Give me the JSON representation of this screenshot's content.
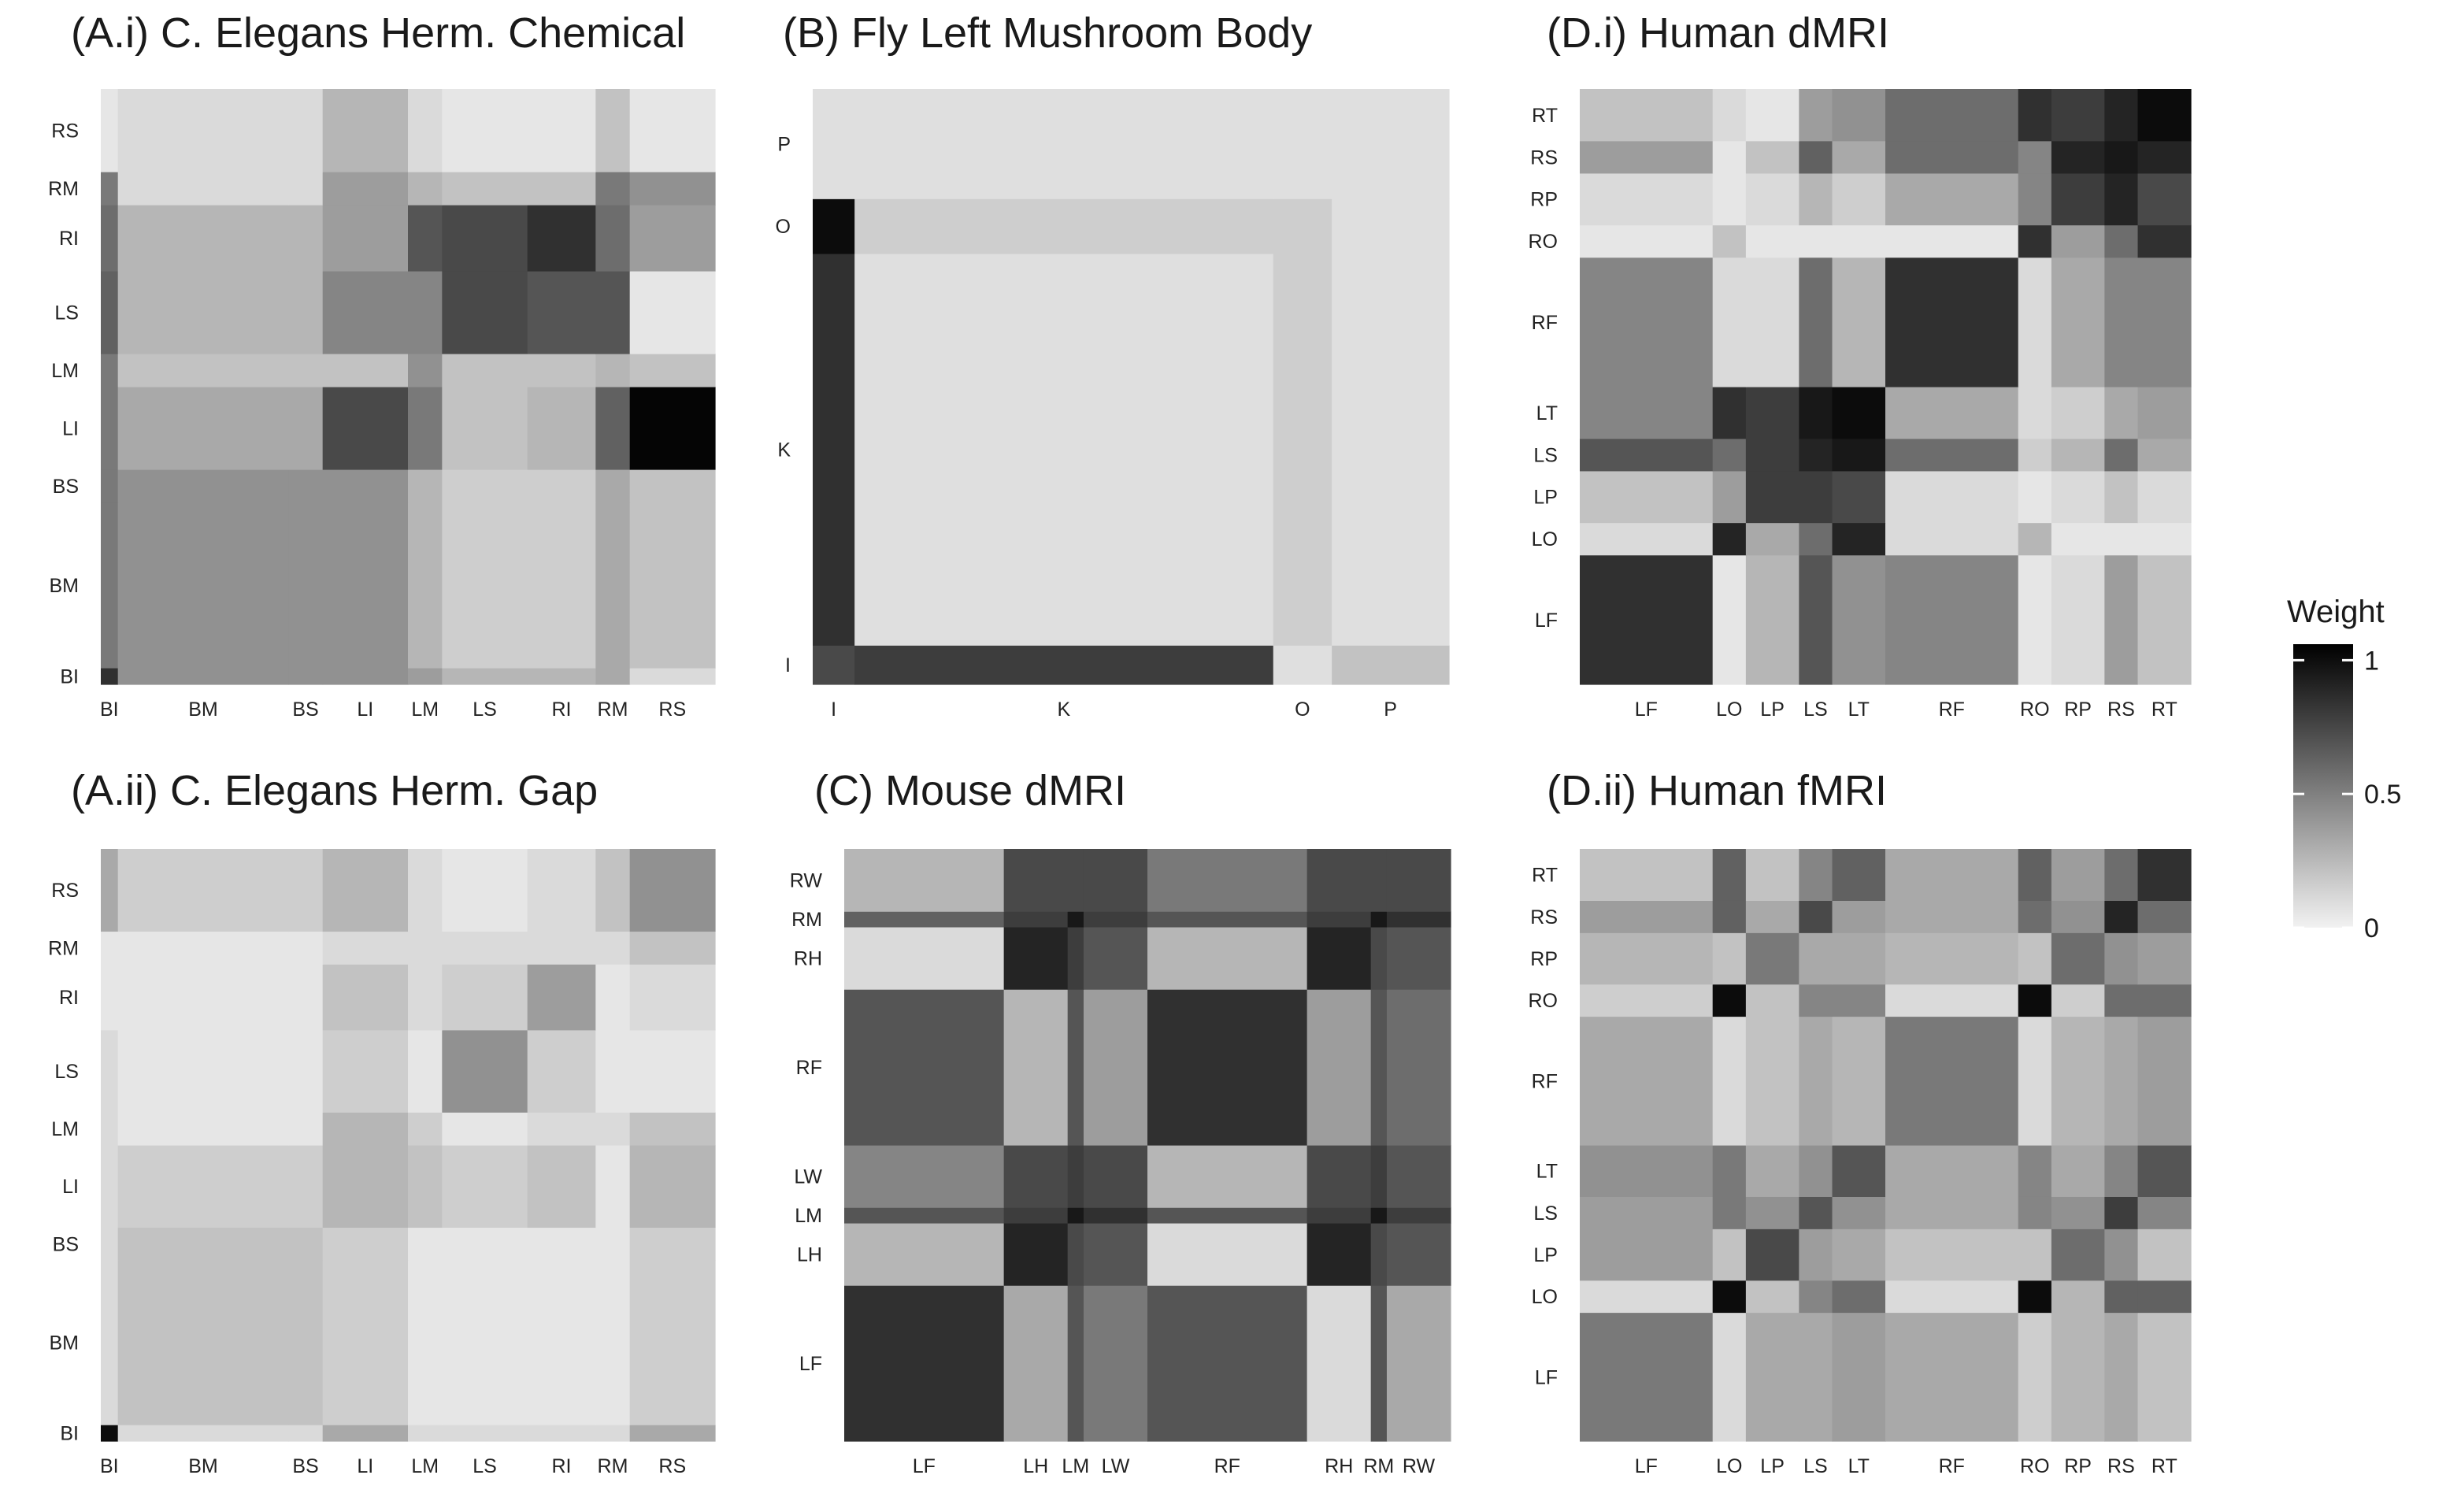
{
  "chart_data": [
    {
      "type": "heatmap",
      "title": "(A.i) C. Elegans Herm. Chemical",
      "groups": [
        "BI",
        "BM",
        "BS",
        "LI",
        "LM",
        "LS",
        "RI",
        "RM",
        "RS"
      ],
      "sizes": [
        3,
        30,
        6,
        15,
        6,
        15,
        12,
        6,
        15
      ],
      "x_tick_labels": [
        "BI",
        "BM",
        "BS",
        "LI",
        "LM",
        "LS",
        "RI",
        "RM",
        "RS"
      ],
      "y_tick_labels": [
        "BI",
        "BM",
        "BS",
        "LI",
        "LM",
        "LS",
        "RI",
        "RM",
        "RS"
      ],
      "values": [
        [
          0.8,
          0.4,
          0.4,
          0.4,
          0.35,
          0.25,
          0.25,
          0.3,
          0.1
        ],
        [
          0.5,
          0.4,
          0.4,
          0.4,
          0.25,
          0.15,
          0.15,
          0.3,
          0.2
        ],
        [
          0.5,
          0.4,
          0.4,
          0.4,
          0.25,
          0.15,
          0.15,
          0.3,
          0.2
        ],
        [
          0.5,
          0.3,
          0.3,
          0.7,
          0.5,
          0.2,
          0.25,
          0.6,
          0.98
        ],
        [
          0.5,
          0.2,
          0.2,
          0.2,
          0.4,
          0.2,
          0.2,
          0.25,
          0.2
        ],
        [
          0.6,
          0.25,
          0.25,
          0.45,
          0.45,
          0.7,
          0.65,
          0.65,
          0.05
        ],
        [
          0.55,
          0.25,
          0.25,
          0.35,
          0.65,
          0.7,
          0.8,
          0.55,
          0.35
        ],
        [
          0.5,
          0.1,
          0.1,
          0.35,
          0.25,
          0.2,
          0.2,
          0.5,
          0.4
        ],
        [
          0.05,
          0.1,
          0.1,
          0.25,
          0.1,
          0.05,
          0.05,
          0.2,
          0.05
        ]
      ]
    },
    {
      "type": "heatmap",
      "title": "(A.ii) C. Elegans Herm. Gap",
      "groups": [
        "BI",
        "BM",
        "BS",
        "LI",
        "LM",
        "LS",
        "RI",
        "RM",
        "RS"
      ],
      "sizes": [
        3,
        30,
        6,
        15,
        6,
        15,
        12,
        6,
        15
      ],
      "x_tick_labels": [
        "BI",
        "BM",
        "BS",
        "LI",
        "LM",
        "LS",
        "RI",
        "RM",
        "RS"
      ],
      "y_tick_labels": [
        "BI",
        "BM",
        "BS",
        "LI",
        "LM",
        "LS",
        "RI",
        "RM",
        "RS"
      ],
      "values": [
        [
          0.95,
          0.1,
          0.1,
          0.3,
          0.1,
          0.1,
          0.1,
          0.1,
          0.3
        ],
        [
          0.1,
          0.2,
          0.2,
          0.15,
          0.05,
          0.05,
          0.05,
          0.05,
          0.15
        ],
        [
          0.1,
          0.2,
          0.2,
          0.15,
          0.05,
          0.05,
          0.05,
          0.05,
          0.15
        ],
        [
          0.1,
          0.15,
          0.15,
          0.25,
          0.2,
          0.15,
          0.2,
          0.05,
          0.25
        ],
        [
          0.1,
          0.05,
          0.05,
          0.25,
          0.15,
          0.05,
          0.1,
          0.1,
          0.2
        ],
        [
          0.1,
          0.05,
          0.05,
          0.15,
          0.05,
          0.4,
          0.15,
          0.05,
          0.05
        ],
        [
          0.05,
          0.05,
          0.05,
          0.2,
          0.1,
          0.15,
          0.35,
          0.05,
          0.1
        ],
        [
          0.05,
          0.05,
          0.05,
          0.1,
          0.1,
          0.1,
          0.1,
          0.1,
          0.2
        ],
        [
          0.3,
          0.15,
          0.15,
          0.25,
          0.1,
          0.05,
          0.1,
          0.2,
          0.4
        ]
      ]
    },
    {
      "type": "heatmap",
      "title": "(B) Fly Left Mushroom Body",
      "groups": [
        "I",
        "K",
        "O",
        "P"
      ],
      "sizes": [
        5,
        50,
        7,
        14
      ],
      "x_tick_labels": [
        "I",
        "K",
        "O",
        "P"
      ],
      "y_tick_labels": [
        "I",
        "K",
        "O",
        "P"
      ],
      "values": [
        [
          0.7,
          0.75,
          0.08,
          0.2
        ],
        [
          0.8,
          0.08,
          0.15,
          0.08
        ],
        [
          0.95,
          0.15,
          0.15,
          0.08
        ],
        [
          0.08,
          0.08,
          0.08,
          0.08
        ]
      ]
    },
    {
      "type": "heatmap",
      "title": "(C) Mouse dMRI",
      "groups": [
        "LF",
        "LH",
        "LM",
        "LW",
        "RF",
        "RH",
        "RM",
        "RW"
      ],
      "sizes": [
        20,
        8,
        2,
        8,
        20,
        8,
        2,
        8
      ],
      "x_tick_labels": [
        "LF",
        "LH",
        "LM",
        "LW",
        "RF",
        "RH",
        "RM",
        "RW"
      ],
      "y_tick_labels": [
        "LF",
        "LH",
        "LM",
        "LW",
        "RF",
        "RH",
        "RM",
        "RW"
      ],
      "values": [
        [
          0.8,
          0.3,
          0.65,
          0.5,
          0.65,
          0.1,
          0.65,
          0.3
        ],
        [
          0.25,
          0.85,
          0.7,
          0.65,
          0.1,
          0.85,
          0.7,
          0.65
        ],
        [
          0.65,
          0.75,
          0.9,
          0.8,
          0.65,
          0.75,
          0.9,
          0.75
        ],
        [
          0.45,
          0.7,
          0.75,
          0.7,
          0.25,
          0.7,
          0.75,
          0.65
        ],
        [
          0.65,
          0.25,
          0.65,
          0.35,
          0.8,
          0.35,
          0.65,
          0.55
        ],
        [
          0.1,
          0.85,
          0.75,
          0.65,
          0.25,
          0.85,
          0.7,
          0.65
        ],
        [
          0.6,
          0.75,
          0.9,
          0.75,
          0.65,
          0.75,
          0.9,
          0.8
        ],
        [
          0.25,
          0.7,
          0.7,
          0.7,
          0.5,
          0.7,
          0.7,
          0.7
        ]
      ]
    },
    {
      "type": "heatmap",
      "title": "(D.i) Human dMRI",
      "groups": [
        "LF",
        "LO",
        "LP",
        "LS",
        "LT",
        "RF",
        "RO",
        "RP",
        "RS",
        "RT"
      ],
      "sizes": [
        20,
        5,
        8,
        5,
        8,
        20,
        5,
        8,
        5,
        8
      ],
      "x_tick_labels": [
        "LF",
        "LO",
        "LP",
        "LS",
        "LT",
        "RF",
        "RO",
        "RP",
        "RS",
        "RT"
      ],
      "y_tick_labels": [
        "LF",
        "LO",
        "LP",
        "LS",
        "LT",
        "RF",
        "RO",
        "RP",
        "RS",
        "RT"
      ],
      "values": [
        [
          0.8,
          0.05,
          0.25,
          0.65,
          0.4,
          0.45,
          0.05,
          0.1,
          0.35,
          0.2
        ],
        [
          0.1,
          0.85,
          0.3,
          0.55,
          0.85,
          0.1,
          0.25,
          0.05,
          0.05,
          0.05
        ],
        [
          0.2,
          0.35,
          0.75,
          0.75,
          0.7,
          0.1,
          0.05,
          0.1,
          0.2,
          0.1
        ],
        [
          0.65,
          0.55,
          0.75,
          0.85,
          0.9,
          0.55,
          0.15,
          0.25,
          0.55,
          0.3
        ],
        [
          0.45,
          0.8,
          0.75,
          0.9,
          0.95,
          0.3,
          0.1,
          0.15,
          0.3,
          0.35
        ],
        [
          0.45,
          0.1,
          0.1,
          0.55,
          0.25,
          0.8,
          0.1,
          0.3,
          0.45,
          0.45
        ],
        [
          0.05,
          0.2,
          0.05,
          0.05,
          0.05,
          0.05,
          0.8,
          0.35,
          0.55,
          0.8
        ],
        [
          0.1,
          0.05,
          0.1,
          0.25,
          0.15,
          0.3,
          0.45,
          0.75,
          0.85,
          0.7
        ],
        [
          0.35,
          0.05,
          0.2,
          0.6,
          0.3,
          0.55,
          0.45,
          0.85,
          0.9,
          0.85
        ],
        [
          0.2,
          0.1,
          0.05,
          0.35,
          0.4,
          0.55,
          0.8,
          0.75,
          0.85,
          0.95
        ]
      ]
    },
    {
      "type": "heatmap",
      "title": "(D.ii) Human fMRI",
      "groups": [
        "LF",
        "LO",
        "LP",
        "LS",
        "LT",
        "RF",
        "RO",
        "RP",
        "RS",
        "RT"
      ],
      "sizes": [
        20,
        5,
        8,
        5,
        8,
        20,
        5,
        8,
        5,
        8
      ],
      "x_tick_labels": [
        "LF",
        "LO",
        "LP",
        "LS",
        "LT",
        "RF",
        "RO",
        "RP",
        "RS",
        "RT"
      ],
      "y_tick_labels": [
        "LF",
        "LO",
        "LP",
        "LS",
        "LT",
        "RF",
        "RO",
        "RP",
        "RS",
        "RT"
      ],
      "values": [
        [
          0.5,
          0.1,
          0.3,
          0.3,
          0.35,
          0.3,
          0.15,
          0.25,
          0.3,
          0.2
        ],
        [
          0.1,
          0.95,
          0.2,
          0.45,
          0.55,
          0.1,
          0.95,
          0.25,
          0.6,
          0.6
        ],
        [
          0.35,
          0.2,
          0.7,
          0.35,
          0.3,
          0.2,
          0.2,
          0.55,
          0.4,
          0.2
        ],
        [
          0.35,
          0.5,
          0.4,
          0.65,
          0.4,
          0.3,
          0.45,
          0.4,
          0.75,
          0.45
        ],
        [
          0.4,
          0.5,
          0.3,
          0.4,
          0.65,
          0.3,
          0.45,
          0.3,
          0.45,
          0.65
        ],
        [
          0.3,
          0.1,
          0.2,
          0.3,
          0.25,
          0.5,
          0.1,
          0.25,
          0.3,
          0.35
        ],
        [
          0.15,
          0.95,
          0.2,
          0.45,
          0.45,
          0.1,
          0.95,
          0.15,
          0.55,
          0.55
        ],
        [
          0.25,
          0.2,
          0.5,
          0.3,
          0.3,
          0.25,
          0.2,
          0.55,
          0.4,
          0.35
        ],
        [
          0.35,
          0.6,
          0.3,
          0.7,
          0.35,
          0.3,
          0.55,
          0.4,
          0.85,
          0.55
        ],
        [
          0.2,
          0.6,
          0.2,
          0.45,
          0.6,
          0.3,
          0.6,
          0.35,
          0.55,
          0.8
        ]
      ]
    }
  ],
  "legend": {
    "title": "Weight",
    "ticks": [
      {
        "value": 1,
        "label": "1"
      },
      {
        "value": 0.5,
        "label": "0.5"
      },
      {
        "value": 0,
        "label": "0"
      }
    ],
    "color_low": "#f2f2f2",
    "color_high": "#000000"
  }
}
